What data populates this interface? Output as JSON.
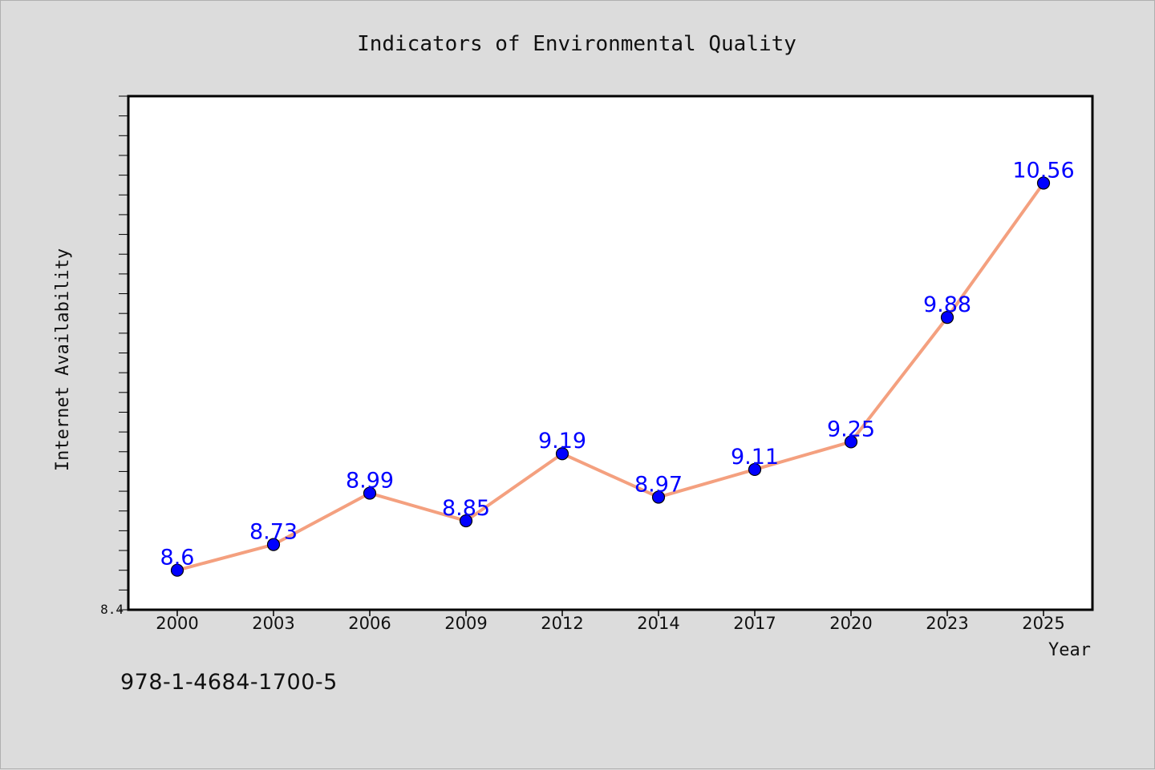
{
  "chart_data": {
    "type": "line",
    "title": "Indicators of Environmental Quality",
    "xlabel": "Year",
    "ylabel": "Internet Availability",
    "categories": [
      "2000",
      "2003",
      "2006",
      "2009",
      "2012",
      "2014",
      "2017",
      "2020",
      "2023",
      "2025"
    ],
    "series": [
      {
        "values": [
          8.6,
          8.73,
          8.99,
          8.85,
          9.19,
          8.97,
          9.11,
          9.25,
          9.88,
          10.56
        ],
        "data_labels": [
          "8.6",
          "8.73",
          "8.99",
          "8.85",
          "9.19",
          "8.97",
          "9.11",
          "9.25",
          "9.88",
          "10.56"
        ]
      }
    ],
    "y_tick_labels": [
      {
        "value": 8.4,
        "label": "8.4"
      }
    ],
    "ylim": [
      8.4,
      11.0
    ],
    "grid": false,
    "colors": {
      "line": "#f4a07f",
      "marker": "#0000ff",
      "data_label": "#0000ff",
      "plot_background": "#ffffff",
      "figure_background": "#dcdcdc"
    }
  },
  "footer_code": "978-1-4684-1700-5"
}
